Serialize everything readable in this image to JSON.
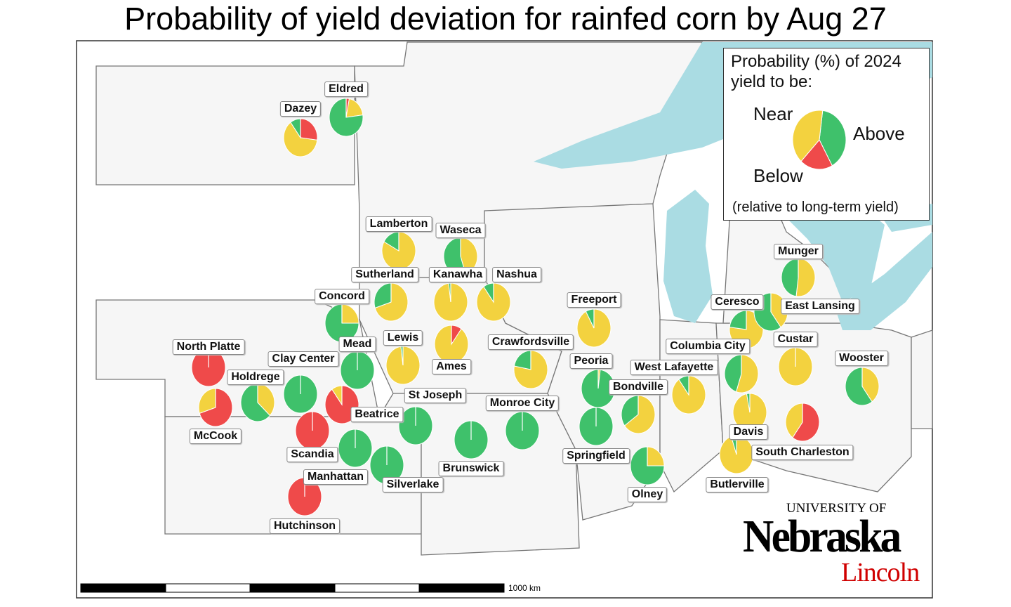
{
  "title": "Probability of yield deviation for rainfed corn by Aug 27",
  "colors": {
    "below": "#ef4a4a",
    "near": "#f3d23f",
    "above": "#3fc16b",
    "water": "#aadce3",
    "land": "#f6f6f6"
  },
  "legend": {
    "title_line1": "Probability (%) of 2024",
    "title_line2": "yield to be:",
    "near": "Near",
    "above": "Above",
    "below": "Below",
    "note": "(relative to long-term yield)",
    "example": {
      "below": 20,
      "near": 40,
      "above": 40
    }
  },
  "scale_bar": {
    "label": "1000 km"
  },
  "logo": {
    "university_of": "UNIVERSITY OF",
    "nebraska": "Nebraska",
    "lincoln": "Lincoln"
  },
  "chart_data": {
    "type": "pie-map",
    "title": "Probability of yield deviation for rainfed corn by Aug 27",
    "categories": [
      "Below",
      "Near",
      "Above"
    ],
    "sites": [
      {
        "name": "Dazey",
        "below": 27,
        "near": 63,
        "above": 10
      },
      {
        "name": "Eldred",
        "below": 3,
        "near": 20,
        "above": 77
      },
      {
        "name": "Lamberton",
        "below": 0,
        "near": 83,
        "above": 17
      },
      {
        "name": "Waseca",
        "below": 0,
        "near": 45,
        "above": 55
      },
      {
        "name": "Sutherland",
        "below": 0,
        "near": 70,
        "above": 30
      },
      {
        "name": "Kanawha",
        "below": 0,
        "near": 98,
        "above": 2
      },
      {
        "name": "Nashua",
        "below": 0,
        "near": 90,
        "above": 10
      },
      {
        "name": "Concord",
        "below": 0,
        "near": 25,
        "above": 75
      },
      {
        "name": "North Platte",
        "below": 100,
        "near": 0,
        "above": 0
      },
      {
        "name": "McCook",
        "below": 70,
        "near": 30,
        "above": 0
      },
      {
        "name": "Holdrege",
        "below": 0,
        "near": 37,
        "above": 63
      },
      {
        "name": "Clay Center",
        "below": 0,
        "near": 0,
        "above": 100
      },
      {
        "name": "Mead",
        "below": 0,
        "near": 0,
        "above": 100
      },
      {
        "name": "Lewis",
        "below": 0,
        "near": 98,
        "above": 2
      },
      {
        "name": "Ames",
        "below": 10,
        "near": 90,
        "above": 0
      },
      {
        "name": "Beatrice",
        "below": 90,
        "near": 10,
        "above": 0
      },
      {
        "name": "Scandia",
        "below": 100,
        "near": 0,
        "above": 0
      },
      {
        "name": "Manhattan",
        "below": 0,
        "near": 0,
        "above": 100
      },
      {
        "name": "Silverlake",
        "below": 0,
        "near": 0,
        "above": 100
      },
      {
        "name": "Hutchinson",
        "below": 100,
        "near": 0,
        "above": 0
      },
      {
        "name": "St Joseph",
        "below": 0,
        "near": 0,
        "above": 100
      },
      {
        "name": "Brunswick",
        "below": 0,
        "near": 0,
        "above": 100
      },
      {
        "name": "Monroe City",
        "below": 0,
        "near": 0,
        "above": 100
      },
      {
        "name": "Crawfordsville",
        "below": 0,
        "near": 78,
        "above": 22
      },
      {
        "name": "Freeport",
        "below": 0,
        "near": 92,
        "above": 8
      },
      {
        "name": "Peoria",
        "below": 0,
        "near": 2,
        "above": 98
      },
      {
        "name": "Springfield",
        "below": 0,
        "near": 0,
        "above": 100
      },
      {
        "name": "Bondville",
        "below": 0,
        "near": 65,
        "above": 35
      },
      {
        "name": "Olney",
        "below": 0,
        "near": 25,
        "above": 75
      },
      {
        "name": "West Lafayette",
        "below": 0,
        "near": 90,
        "above": 10
      },
      {
        "name": "Columbia City",
        "below": 0,
        "near": 55,
        "above": 45
      },
      {
        "name": "Ceresco",
        "below": 0,
        "near": 77,
        "above": 23
      },
      {
        "name": "East Lansing",
        "below": 0,
        "near": 40,
        "above": 60
      },
      {
        "name": "Munger",
        "below": 0,
        "near": 52,
        "above": 48
      },
      {
        "name": "Custar",
        "below": 0,
        "near": 100,
        "above": 0
      },
      {
        "name": "Wooster",
        "below": 0,
        "near": 40,
        "above": 60
      },
      {
        "name": "Davis",
        "below": 0,
        "near": 97,
        "above": 3
      },
      {
        "name": "South Charleston",
        "below": 60,
        "near": 40,
        "above": 0
      },
      {
        "name": "Butlerville",
        "below": 0,
        "near": 95,
        "above": 5
      }
    ]
  }
}
